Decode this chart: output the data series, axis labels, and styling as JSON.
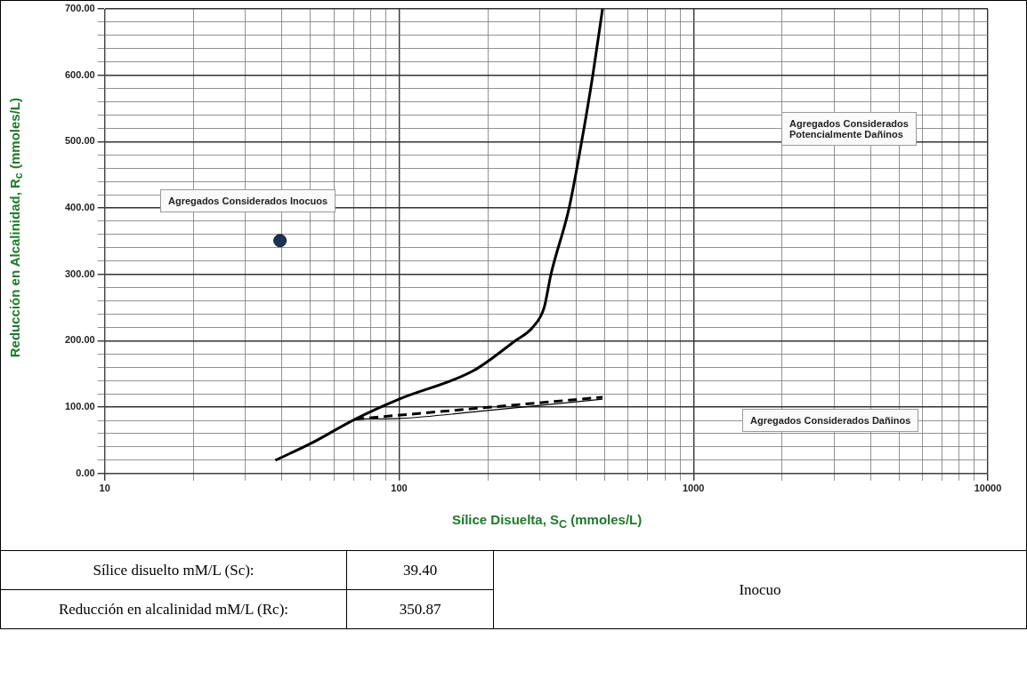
{
  "chart_data": {
    "type": "line",
    "xlabel": "Sílice Disuelta, S$_{C}$ (mmoles/L)",
    "ylabel": "Reducción en Alcalinidad, R$_{c}$ (mmoles/L)",
    "log": "x",
    "xlim": [
      10,
      10000
    ],
    "ylim": [
      0,
      700
    ],
    "xticks": [
      10,
      {
        "value": 20,
        "label": null
      },
      {
        "value": 30,
        "label": null
      },
      {
        "value": 40,
        "label": null
      },
      {
        "value": 50,
        "label": null
      },
      {
        "value": 60,
        "label": null
      },
      {
        "value": 70,
        "label": null
      },
      {
        "value": 80,
        "label": null
      },
      {
        "value": 90,
        "label": null
      },
      100,
      {
        "value": 200,
        "label": null
      },
      {
        "value": 300,
        "label": null
      },
      {
        "value": 400,
        "label": null
      },
      {
        "value": 500,
        "label": null
      },
      {
        "value": 600,
        "label": null
      },
      {
        "value": 700,
        "label": null
      },
      {
        "value": 800,
        "label": null
      },
      {
        "value": 900,
        "label": null
      },
      1000,
      {
        "value": 2000,
        "label": null
      },
      {
        "value": 3000,
        "label": null
      },
      {
        "value": 4000,
        "label": null
      },
      {
        "value": 5000,
        "label": null
      },
      {
        "value": 6000,
        "label": null
      },
      {
        "value": 7000,
        "label": null
      },
      {
        "value": 8000,
        "label": null
      },
      {
        "value": 9000,
        "label": null
      },
      10000
    ],
    "yticks": [
      {
        "value": 0,
        "label": "0.00"
      },
      {
        "value": 20,
        "label": null
      },
      {
        "value": 40,
        "label": null
      },
      {
        "value": 60,
        "label": null
      },
      {
        "value": 80,
        "label": null
      },
      {
        "value": 100,
        "label": "100.00"
      },
      {
        "value": 120,
        "label": null
      },
      {
        "value": 140,
        "label": null
      },
      {
        "value": 160,
        "label": null
      },
      {
        "value": 180,
        "label": null
      },
      {
        "value": 200,
        "label": "200.00"
      },
      {
        "value": 220,
        "label": null
      },
      {
        "value": 240,
        "label": null
      },
      {
        "value": 260,
        "label": null
      },
      {
        "value": 280,
        "label": null
      },
      {
        "value": 300,
        "label": "300.00"
      },
      {
        "value": 320,
        "label": null
      },
      {
        "value": 340,
        "label": null
      },
      {
        "value": 360,
        "label": null
      },
      {
        "value": 380,
        "label": null
      },
      {
        "value": 400,
        "label": "400.00"
      },
      {
        "value": 420,
        "label": null
      },
      {
        "value": 440,
        "label": null
      },
      {
        "value": 460,
        "label": null
      },
      {
        "value": 480,
        "label": null
      },
      {
        "value": 500,
        "label": "500.00"
      },
      {
        "value": 520,
        "label": null
      },
      {
        "value": 540,
        "label": null
      },
      {
        "value": 560,
        "label": null
      },
      {
        "value": 580,
        "label": null
      },
      {
        "value": 600,
        "label": "600.00"
      },
      {
        "value": 620,
        "label": null
      },
      {
        "value": 640,
        "label": null
      },
      {
        "value": 660,
        "label": null
      },
      {
        "value": 680,
        "label": null
      },
      {
        "value": 700,
        "label": "700.00"
      }
    ],
    "grid": true,
    "legend": false,
    "series": [
      {
        "color": "#000000",
        "line_style": "solid",
        "marker": "none",
        "x": [
          38,
          50,
          71,
          100,
          179,
          248,
          284,
          311,
          328,
          378,
          417,
          455,
          491
        ],
        "values": [
          20,
          45,
          82,
          112,
          155,
          200,
          220,
          250,
          300,
          400,
          500,
          600,
          700
        ]
      },
      {
        "color": "#000000",
        "line_style": "dashed",
        "marker": "none",
        "x": [
          71,
          491
        ],
        "values": [
          82,
          115
        ]
      },
      {
        "color": "#000000",
        "line_style": "solid",
        "marker": "none",
        "x": [
          71,
          100,
          200,
          491
        ],
        "values": [
          82,
          83,
          95,
          112
        ]
      },
      {
        "type": "scatter",
        "color": "#1b3354",
        "marker": "circle",
        "x": [
          39.4
        ],
        "values": [
          350.87
        ]
      }
    ],
    "annotations": [
      "Agregados Considerados Inocuos",
      "Agregados Considerados\nPotencialmente Dañinos",
      "Agregados Considerados Dañinos",
      "Sílice disuelto mM/L (Sc):",
      "39.40",
      "Reducción en alcalinidad mM/L (Rc):",
      "350.87",
      "Inocuo"
    ]
  }
}
